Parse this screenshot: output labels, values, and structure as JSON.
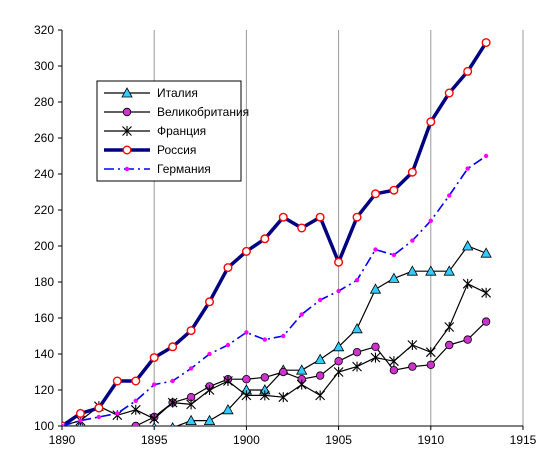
{
  "chart_data": {
    "type": "line",
    "title": "",
    "xlabel": "",
    "ylabel": "",
    "xlim": [
      1890,
      1915
    ],
    "ylim": [
      100,
      320
    ],
    "x_ticks": [
      1890,
      1895,
      1900,
      1905,
      1910,
      1915
    ],
    "y_ticks": [
      100,
      120,
      140,
      160,
      180,
      200,
      220,
      240,
      260,
      280,
      300,
      320
    ],
    "x_tick_labels": [
      "1890",
      "1895",
      "1900",
      "1905",
      "1910",
      "1915"
    ],
    "y_tick_labels": [
      "100",
      "120",
      "140",
      "160",
      "180",
      "200",
      "220",
      "240",
      "260",
      "280",
      "300",
      "320"
    ],
    "grid": "vertical",
    "legend": "top-left",
    "x": [
      1890,
      1891,
      1892,
      1893,
      1894,
      1895,
      1896,
      1897,
      1898,
      1899,
      1900,
      1901,
      1902,
      1903,
      1904,
      1905,
      1906,
      1907,
      1908,
      1909,
      1910,
      1911,
      1912,
      1913
    ],
    "series": [
      {
        "name": "Италия",
        "color": "#000000",
        "marker": "triangle",
        "marker_fill": "#33ccff",
        "values": [
          100,
          100,
          96,
          94,
          96,
          99,
          99,
          103,
          103,
          109,
          120,
          120,
          131,
          131,
          137,
          144,
          154,
          176,
          182,
          186,
          186,
          186,
          200,
          196
        ]
      },
      {
        "name": "Великобритания",
        "color": "#000000",
        "marker": "circle",
        "marker_fill": "#cc33cc",
        "values": [
          100,
          96,
          92,
          96,
          100,
          105,
          113,
          116,
          122,
          126,
          126,
          127,
          130,
          126,
          128,
          136,
          141,
          144,
          131,
          133,
          134,
          145,
          148,
          158
        ]
      },
      {
        "name": "Франция",
        "color": "#000000",
        "marker": "star",
        "marker_fill": "#000000",
        "values": [
          100,
          103,
          111,
          106,
          109,
          104,
          113,
          112,
          120,
          125,
          117,
          117,
          116,
          123,
          117,
          130,
          133,
          138,
          136,
          145,
          141,
          155,
          179,
          174
        ]
      },
      {
        "name": "Россия",
        "color": "#000080",
        "marker": "circle",
        "marker_fill": "#ffffff",
        "marker_stroke": "#ff0000",
        "line_width": 3.5,
        "values": [
          100,
          107,
          110,
          125,
          125,
          138,
          144,
          153,
          169,
          188,
          197,
          204,
          216,
          210,
          216,
          191,
          216,
          229,
          231,
          241,
          269,
          285,
          297,
          313
        ]
      },
      {
        "name": "Германия",
        "color": "#0000ff",
        "dashed": true,
        "marker": "dot",
        "marker_fill": "#ff00ff",
        "values": [
          100,
          103,
          105,
          107,
          114,
          123,
          125,
          132,
          140,
          145,
          152,
          148,
          150,
          162,
          170,
          175,
          181,
          198,
          195,
          203,
          214,
          228,
          243,
          250
        ]
      }
    ]
  }
}
